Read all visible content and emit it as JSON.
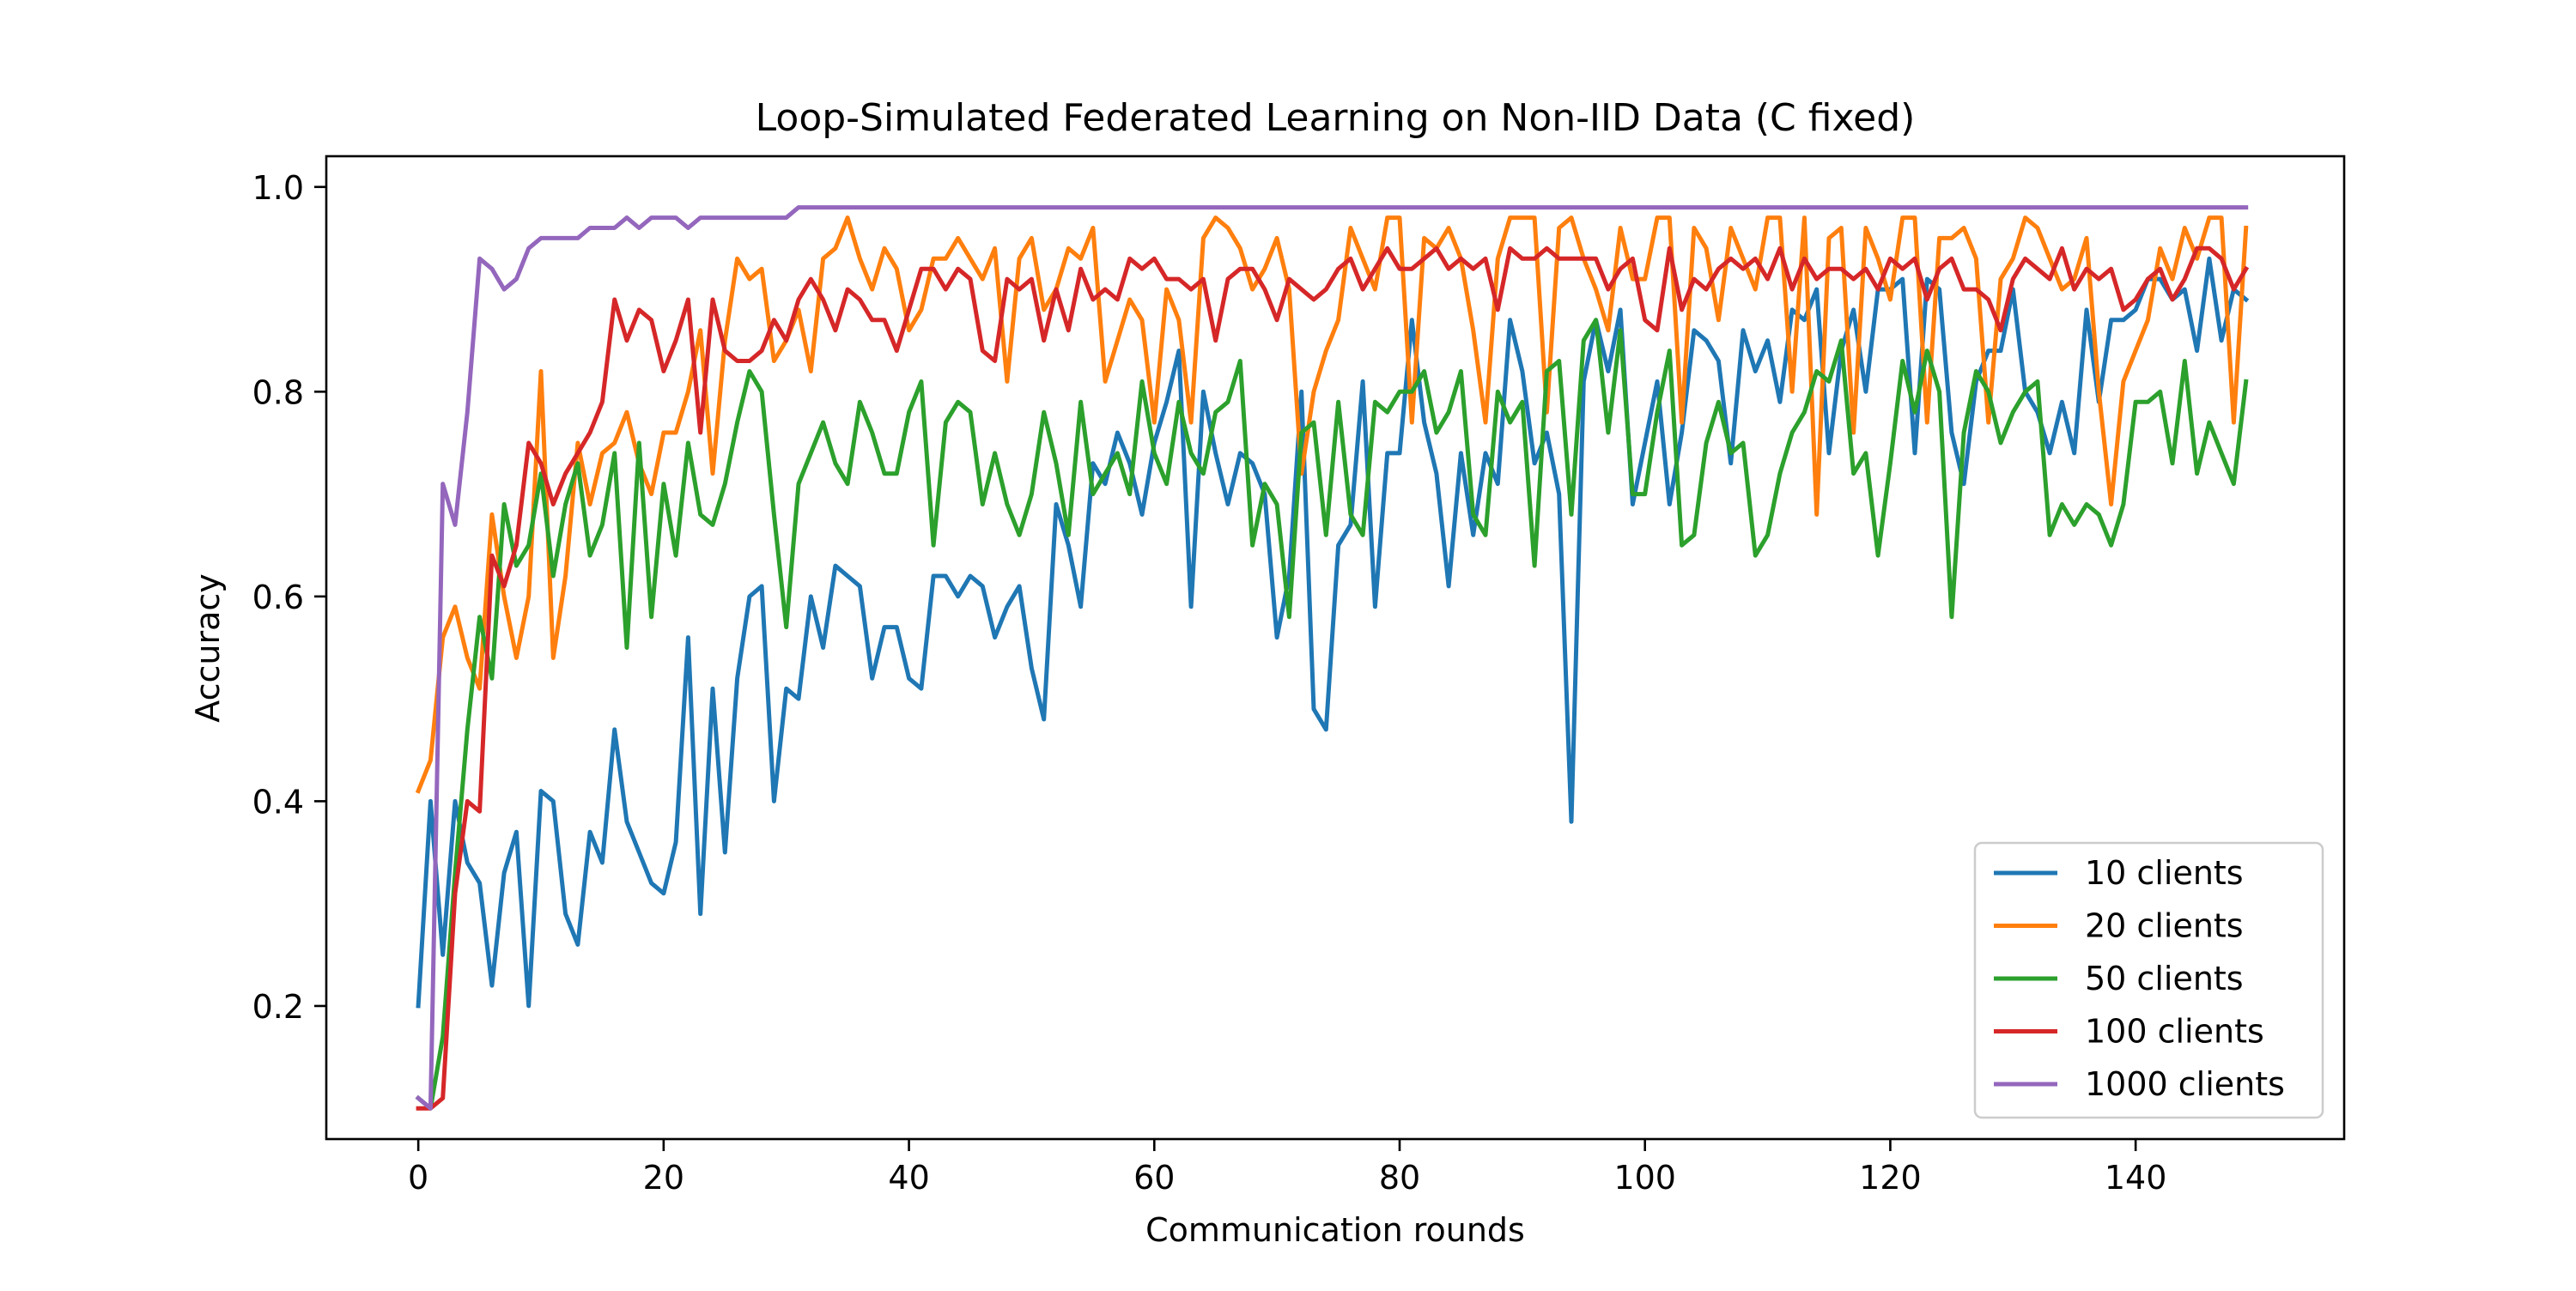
{
  "chart_data": {
    "type": "line",
    "title": "Loop-Simulated Federated Learning on Non-IID Data (C fixed)",
    "xlabel": "Communication rounds",
    "ylabel": "Accuracy",
    "xlim": [
      -7.5,
      157
    ],
    "ylim": [
      0.07,
      1.03
    ],
    "xticks": [
      0,
      20,
      40,
      60,
      80,
      100,
      120,
      140
    ],
    "xtick_labels": [
      "0",
      "20",
      "40",
      "60",
      "80",
      "100",
      "120",
      "140"
    ],
    "yticks": [
      0.2,
      0.4,
      0.6,
      0.8,
      1.0
    ],
    "ytick_labels": [
      "0.2",
      "0.4",
      "0.6",
      "0.8",
      "1.0"
    ],
    "grid": false,
    "legend_position": "bottom-right",
    "x_note": "x = round index 0..149 (one value per round)",
    "series": [
      {
        "name": "10 clients",
        "color": "#1f77b4",
        "values": [
          0.2,
          0.4,
          0.25,
          0.4,
          0.34,
          0.32,
          0.22,
          0.33,
          0.37,
          0.2,
          0.41,
          0.4,
          0.29,
          0.26,
          0.37,
          0.34,
          0.47,
          0.38,
          0.35,
          0.32,
          0.31,
          0.36,
          0.56,
          0.29,
          0.51,
          0.35,
          0.52,
          0.6,
          0.61,
          0.4,
          0.51,
          0.5,
          0.6,
          0.55,
          0.63,
          0.62,
          0.61,
          0.52,
          0.57,
          0.57,
          0.52,
          0.51,
          0.62,
          0.62,
          0.6,
          0.62,
          0.61,
          0.56,
          0.59,
          0.61,
          0.53,
          0.48,
          0.69,
          0.65,
          0.59,
          0.73,
          0.71,
          0.76,
          0.73,
          0.68,
          0.75,
          0.79,
          0.84,
          0.59,
          0.8,
          0.74,
          0.69,
          0.74,
          0.73,
          0.7,
          0.56,
          0.62,
          0.8,
          0.49,
          0.47,
          0.65,
          0.67,
          0.81,
          0.59,
          0.74,
          0.74,
          0.87,
          0.77,
          0.72,
          0.61,
          0.74,
          0.66,
          0.74,
          0.71,
          0.87,
          0.82,
          0.73,
          0.76,
          0.7,
          0.38,
          0.81,
          0.87,
          0.82,
          0.88,
          0.69,
          0.75,
          0.81,
          0.69,
          0.76,
          0.86,
          0.85,
          0.83,
          0.73,
          0.86,
          0.82,
          0.85,
          0.79,
          0.88,
          0.87,
          0.9,
          0.74,
          0.84,
          0.88,
          0.8,
          0.9,
          0.9,
          0.91,
          0.74,
          0.91,
          0.9,
          0.76,
          0.71,
          0.81,
          0.84,
          0.84,
          0.9,
          0.8,
          0.78,
          0.74,
          0.79,
          0.74,
          0.88,
          0.79,
          0.87,
          0.87,
          0.88,
          0.91,
          0.91,
          0.89,
          0.9,
          0.84,
          0.93,
          0.85,
          0.9,
          0.89
        ]
      },
      {
        "name": "20 clients",
        "color": "#ff7f0e",
        "values": [
          0.41,
          0.44,
          0.56,
          0.59,
          0.54,
          0.51,
          0.68,
          0.6,
          0.54,
          0.6,
          0.82,
          0.54,
          0.62,
          0.75,
          0.69,
          0.74,
          0.75,
          0.78,
          0.73,
          0.7,
          0.76,
          0.76,
          0.8,
          0.86,
          0.72,
          0.85,
          0.93,
          0.91,
          0.92,
          0.83,
          0.85,
          0.88,
          0.82,
          0.93,
          0.94,
          0.97,
          0.93,
          0.9,
          0.94,
          0.92,
          0.86,
          0.88,
          0.93,
          0.93,
          0.95,
          0.93,
          0.91,
          0.94,
          0.81,
          0.93,
          0.95,
          0.88,
          0.9,
          0.94,
          0.93,
          0.96,
          0.81,
          0.85,
          0.89,
          0.87,
          0.77,
          0.9,
          0.87,
          0.77,
          0.95,
          0.97,
          0.96,
          0.94,
          0.9,
          0.92,
          0.95,
          0.9,
          0.72,
          0.8,
          0.84,
          0.87,
          0.96,
          0.93,
          0.9,
          0.97,
          0.97,
          0.77,
          0.95,
          0.94,
          0.96,
          0.93,
          0.86,
          0.77,
          0.93,
          0.97,
          0.97,
          0.97,
          0.78,
          0.96,
          0.97,
          0.93,
          0.9,
          0.86,
          0.96,
          0.91,
          0.91,
          0.97,
          0.97,
          0.77,
          0.96,
          0.94,
          0.87,
          0.96,
          0.93,
          0.9,
          0.97,
          0.97,
          0.8,
          0.97,
          0.68,
          0.95,
          0.96,
          0.76,
          0.96,
          0.93,
          0.89,
          0.97,
          0.97,
          0.77,
          0.95,
          0.95,
          0.96,
          0.93,
          0.77,
          0.91,
          0.93,
          0.97,
          0.96,
          0.93,
          0.9,
          0.91,
          0.95,
          0.8,
          0.69,
          0.81,
          0.84,
          0.87,
          0.94,
          0.91,
          0.96,
          0.93,
          0.97,
          0.97,
          0.77,
          0.96
        ]
      },
      {
        "name": "50 clients",
        "color": "#2ca02c",
        "values": [
          0.11,
          0.1,
          0.17,
          0.33,
          0.47,
          0.58,
          0.52,
          0.69,
          0.63,
          0.65,
          0.72,
          0.62,
          0.69,
          0.73,
          0.64,
          0.67,
          0.74,
          0.55,
          0.75,
          0.58,
          0.71,
          0.64,
          0.75,
          0.68,
          0.67,
          0.71,
          0.77,
          0.82,
          0.8,
          0.68,
          0.57,
          0.71,
          0.74,
          0.77,
          0.73,
          0.71,
          0.79,
          0.76,
          0.72,
          0.72,
          0.78,
          0.81,
          0.65,
          0.77,
          0.79,
          0.78,
          0.69,
          0.74,
          0.69,
          0.66,
          0.7,
          0.78,
          0.73,
          0.66,
          0.79,
          0.7,
          0.72,
          0.74,
          0.7,
          0.81,
          0.74,
          0.71,
          0.79,
          0.74,
          0.72,
          0.78,
          0.79,
          0.83,
          0.65,
          0.71,
          0.69,
          0.58,
          0.76,
          0.77,
          0.66,
          0.79,
          0.68,
          0.66,
          0.79,
          0.78,
          0.8,
          0.8,
          0.82,
          0.76,
          0.78,
          0.82,
          0.68,
          0.66,
          0.8,
          0.77,
          0.79,
          0.63,
          0.82,
          0.83,
          0.68,
          0.85,
          0.87,
          0.76,
          0.86,
          0.7,
          0.7,
          0.78,
          0.84,
          0.65,
          0.66,
          0.75,
          0.79,
          0.74,
          0.75,
          0.64,
          0.66,
          0.72,
          0.76,
          0.78,
          0.82,
          0.81,
          0.85,
          0.72,
          0.74,
          0.64,
          0.73,
          0.83,
          0.78,
          0.84,
          0.8,
          0.58,
          0.76,
          0.82,
          0.8,
          0.75,
          0.78,
          0.8,
          0.81,
          0.66,
          0.69,
          0.67,
          0.69,
          0.68,
          0.65,
          0.69,
          0.79,
          0.79,
          0.8,
          0.73,
          0.83,
          0.72,
          0.77,
          0.74,
          0.71,
          0.81
        ]
      },
      {
        "name": "100 clients",
        "color": "#d62728",
        "values": [
          0.1,
          0.1,
          0.11,
          0.31,
          0.4,
          0.39,
          0.64,
          0.61,
          0.65,
          0.75,
          0.73,
          0.69,
          0.72,
          0.74,
          0.76,
          0.79,
          0.89,
          0.85,
          0.88,
          0.87,
          0.82,
          0.85,
          0.89,
          0.76,
          0.89,
          0.84,
          0.83,
          0.83,
          0.84,
          0.87,
          0.85,
          0.89,
          0.91,
          0.89,
          0.86,
          0.9,
          0.89,
          0.87,
          0.87,
          0.84,
          0.88,
          0.92,
          0.92,
          0.9,
          0.92,
          0.91,
          0.84,
          0.83,
          0.91,
          0.9,
          0.91,
          0.85,
          0.9,
          0.86,
          0.92,
          0.89,
          0.9,
          0.89,
          0.93,
          0.92,
          0.93,
          0.91,
          0.91,
          0.9,
          0.91,
          0.85,
          0.91,
          0.92,
          0.92,
          0.9,
          0.87,
          0.91,
          0.9,
          0.89,
          0.9,
          0.92,
          0.93,
          0.9,
          0.92,
          0.94,
          0.92,
          0.92,
          0.93,
          0.94,
          0.92,
          0.93,
          0.92,
          0.93,
          0.88,
          0.94,
          0.93,
          0.93,
          0.94,
          0.93,
          0.93,
          0.93,
          0.93,
          0.9,
          0.92,
          0.93,
          0.87,
          0.86,
          0.94,
          0.88,
          0.91,
          0.9,
          0.92,
          0.93,
          0.92,
          0.93,
          0.91,
          0.94,
          0.9,
          0.93,
          0.91,
          0.92,
          0.92,
          0.91,
          0.92,
          0.9,
          0.93,
          0.92,
          0.93,
          0.89,
          0.92,
          0.93,
          0.9,
          0.9,
          0.89,
          0.86,
          0.91,
          0.93,
          0.92,
          0.91,
          0.94,
          0.9,
          0.92,
          0.91,
          0.92,
          0.88,
          0.89,
          0.91,
          0.92,
          0.89,
          0.91,
          0.94,
          0.94,
          0.93,
          0.9,
          0.92
        ]
      },
      {
        "name": "1000 clients",
        "color": "#9467bd",
        "values": [
          0.11,
          0.1,
          0.71,
          0.67,
          0.78,
          0.93,
          0.92,
          0.9,
          0.91,
          0.94,
          0.95,
          0.95,
          0.95,
          0.95,
          0.96,
          0.96,
          0.96,
          0.97,
          0.96,
          0.97,
          0.97,
          0.97,
          0.96,
          0.97,
          0.97,
          0.97,
          0.97,
          0.97,
          0.97,
          0.97,
          0.97,
          0.98,
          0.98,
          0.98,
          0.98,
          0.98,
          0.98,
          0.98,
          0.98,
          0.98,
          0.98,
          0.98,
          0.98,
          0.98,
          0.98,
          0.98,
          0.98,
          0.98,
          0.98,
          0.98,
          0.98,
          0.98,
          0.98,
          0.98,
          0.98,
          0.98,
          0.98,
          0.98,
          0.98,
          0.98,
          0.98,
          0.98,
          0.98,
          0.98,
          0.98,
          0.98,
          0.98,
          0.98,
          0.98,
          0.98,
          0.98,
          0.98,
          0.98,
          0.98,
          0.98,
          0.98,
          0.98,
          0.98,
          0.98,
          0.98,
          0.98,
          0.98,
          0.98,
          0.98,
          0.98,
          0.98,
          0.98,
          0.98,
          0.98,
          0.98,
          0.98,
          0.98,
          0.98,
          0.98,
          0.98,
          0.98,
          0.98,
          0.98,
          0.98,
          0.98,
          0.98,
          0.98,
          0.98,
          0.98,
          0.98,
          0.98,
          0.98,
          0.98,
          0.98,
          0.98,
          0.98,
          0.98,
          0.98,
          0.98,
          0.98,
          0.98,
          0.98,
          0.98,
          0.98,
          0.98,
          0.98,
          0.98,
          0.98,
          0.98,
          0.98,
          0.98,
          0.98,
          0.98,
          0.98,
          0.98,
          0.98,
          0.98,
          0.98,
          0.98,
          0.98,
          0.98,
          0.98,
          0.98,
          0.98,
          0.98,
          0.98,
          0.98,
          0.98,
          0.98,
          0.98,
          0.98,
          0.98,
          0.98,
          0.98,
          0.98
        ]
      }
    ]
  }
}
